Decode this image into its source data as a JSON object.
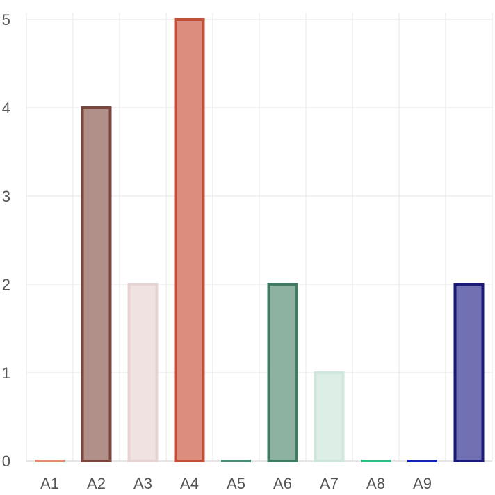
{
  "chart_data": {
    "type": "bar",
    "categories": [
      "A1",
      "A2",
      "A3",
      "A4",
      "A5",
      "A6",
      "A7",
      "A8",
      "A9",
      ""
    ],
    "values": [
      0,
      4,
      2,
      5,
      0,
      2,
      1,
      0,
      0,
      2
    ],
    "yticks": [
      "0",
      "1",
      "2",
      "3",
      "4",
      "5"
    ],
    "ylim": [
      0,
      5
    ],
    "grid": true,
    "title": "",
    "xlabel": "",
    "ylabel": "",
    "bar_fill_colors": [
      "#e8a08e",
      "#b09089",
      "#efe2e1",
      "#db8e7e",
      "#7fb0a0",
      "#8eb2a1",
      "#ddeee6",
      "#4ccb98",
      "#2a2dc6",
      "#7070b3"
    ],
    "bar_stroke_colors": [
      "#e08a75",
      "#7a463d",
      "#e7d3d1",
      "#c0503a",
      "#4a8c75",
      "#3f7c62",
      "#cfe6dc",
      "#2bbf86",
      "#1a1fb5",
      "#1a1a7a"
    ]
  }
}
